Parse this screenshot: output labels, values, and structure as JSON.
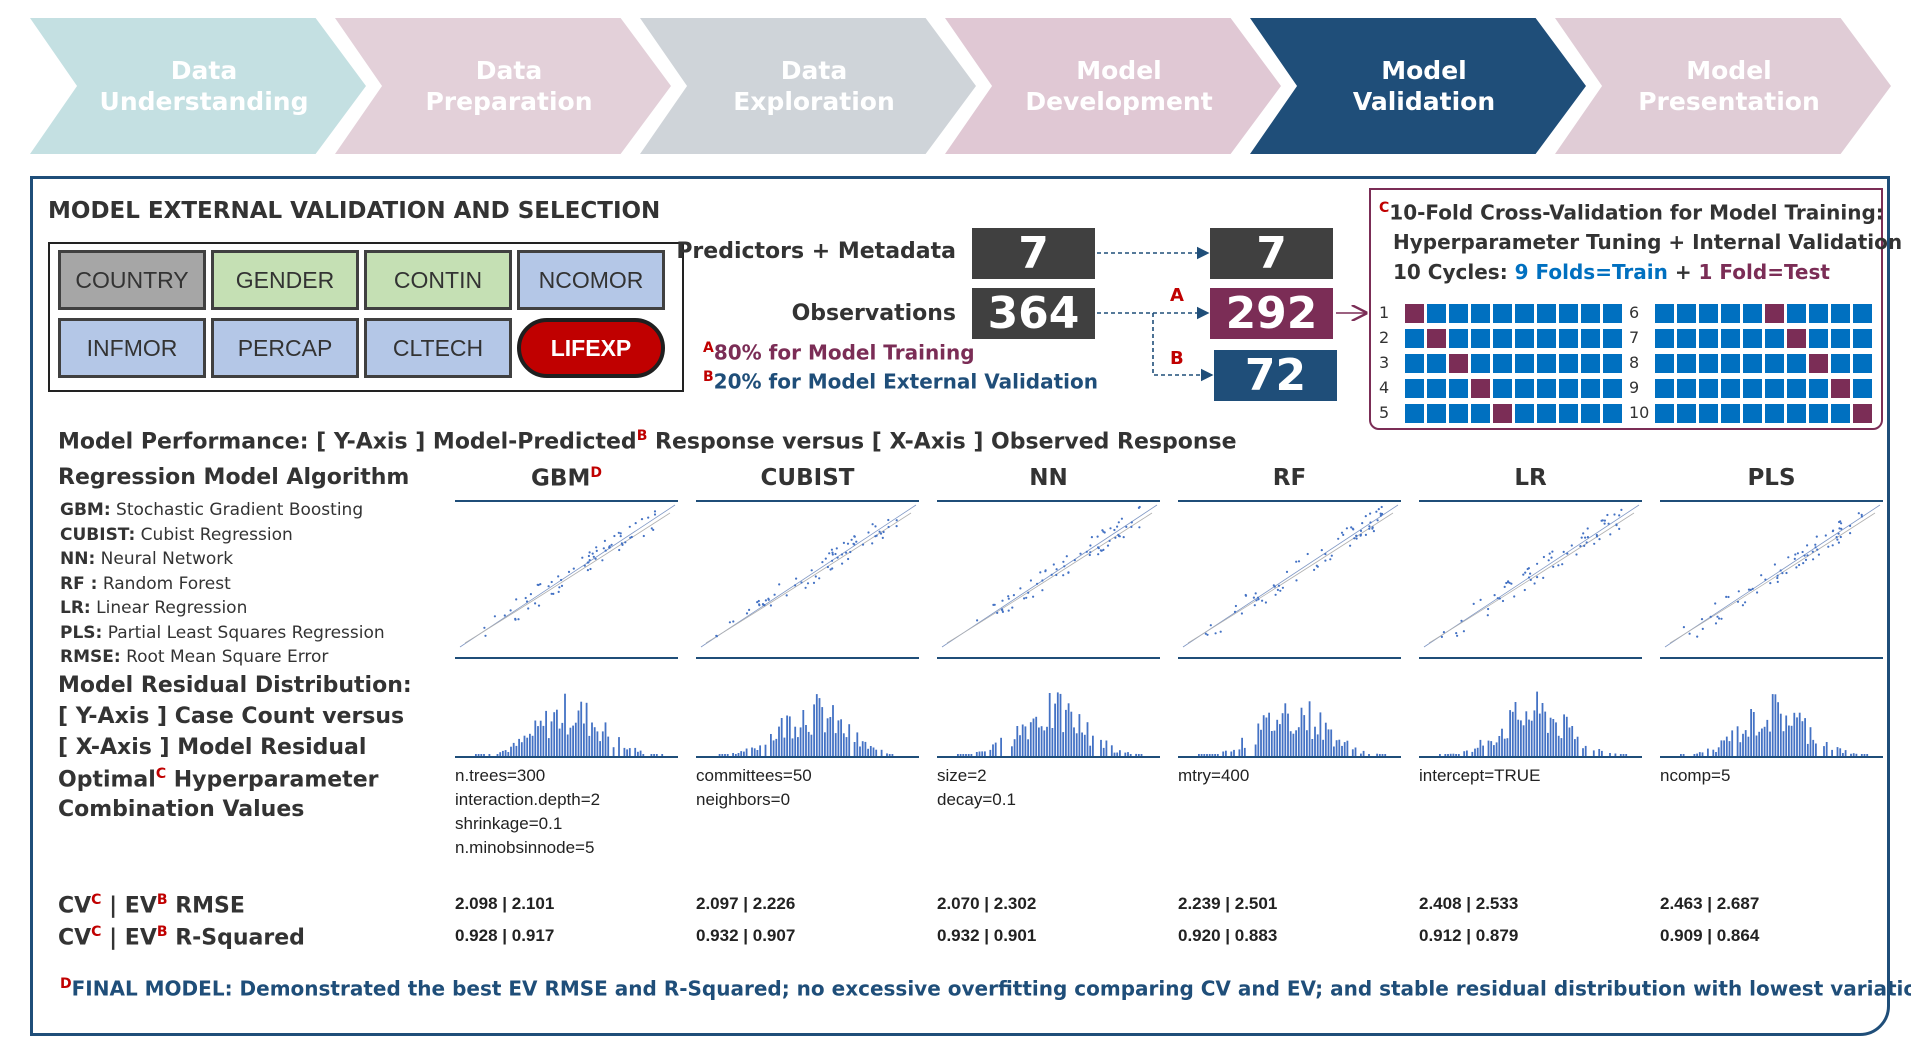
{
  "process": {
    "steps": [
      {
        "label": "Data\nUnderstanding",
        "color": "#c4e0e2"
      },
      {
        "label": "Data\nPreparation",
        "color": "#e3d0d9"
      },
      {
        "label": "Data\nExploration",
        "color": "#cfd4d9"
      },
      {
        "label": "Model\nDevelopment",
        "color": "#e0c8d4"
      },
      {
        "label": "Model\nValidation",
        "color": "#1f4e79"
      },
      {
        "label": "Model\nPresentation",
        "color": "#e0ccd6"
      }
    ]
  },
  "panel": {
    "title": "MODEL EXTERNAL VALIDATION AND SELECTION",
    "variables": [
      {
        "name": "COUNTRY",
        "color": "#a6a6a6"
      },
      {
        "name": "GENDER",
        "color": "#c5e0b4"
      },
      {
        "name": "CONTIN",
        "color": "#c5e0b4"
      },
      {
        "name": "NCOMOR",
        "color": "#b4c7e7"
      },
      {
        "name": "INFMOR",
        "color": "#b4c7e7"
      },
      {
        "name": "PERCAP",
        "color": "#b4c7e7"
      },
      {
        "name": "CLTECH",
        "color": "#b4c7e7"
      },
      {
        "name": "LIFEXP",
        "color": "#c00000"
      }
    ]
  },
  "split": {
    "predictors_label": "Predictors + Metadata",
    "observations_label": "Observations",
    "predictors_in": "7",
    "predictors_out": "7",
    "observations_in": "364",
    "train_count": "292",
    "test_count": "72",
    "marker_a": "A",
    "marker_b": "B",
    "note_a": "80% for Model Training",
    "note_b": "20% for Model External Validation",
    "colors": {
      "dark": "#404040",
      "train": "#7b2d56",
      "test": "#1f4e79"
    }
  },
  "cv": {
    "marker": "C",
    "line1": "10-Fold Cross-Validation for Model Training:",
    "line2": "Hyperparameter Tuning + Internal Validation",
    "line3_prefix": "10 Cycles: ",
    "line3_train": "9 Folds=Train",
    "line3_plus": " + ",
    "line3_test": "1 Fold=Test",
    "cycles": [
      "1",
      "2",
      "3",
      "4",
      "5",
      "6",
      "7",
      "8",
      "9",
      "10"
    ],
    "fold_colors": {
      "train": "#0070c0",
      "test": "#7b2d56"
    }
  },
  "performance": {
    "heading_prefix": "Model Performance: [ Y-Axis ] Model-Predicted",
    "heading_marker": "B",
    "heading_suffix": " Response versus [ X-Axis ] Observed Response",
    "algo_heading": "Regression Model Algorithm",
    "abbreviations": [
      {
        "key": "GBM:",
        "text": " Stochastic Gradient Boosting"
      },
      {
        "key": "CUBIST:",
        "text": " Cubist Regression"
      },
      {
        "key": "NN:",
        "text": " Neural Network"
      },
      {
        "key": "RF :",
        "text": " Random Forest"
      },
      {
        "key": "LR:",
        "text": " Linear Regression"
      },
      {
        "key": "PLS:",
        "text": " Partial Least Squares Regression"
      },
      {
        "key": "RMSE:",
        "text": " Root Mean Square Error"
      }
    ],
    "residual_heading_1": "Model Residual Distribution:",
    "residual_heading_2": "[ Y-Axis ] Case Count versus",
    "residual_heading_3": "[ X-Axis ] Model Residual",
    "optimal_heading_1": "Optimal",
    "optimal_marker": "C",
    "optimal_heading_1b": " Hyperparameter",
    "optimal_heading_2": "Combination Values",
    "rmse_label": "RMSE",
    "rsq_label": "R-Squared",
    "cv_label": "CV",
    "ev_label": " | EV",
    "marker_c": "C",
    "marker_b": "B",
    "marker_d": "D",
    "final_text": "FINAL MODEL: Demonstrated the best EV RMSE and R-Squared; no excessive overfitting comparing CV and EV; and stable residual distribution with lowest variation.",
    "models": [
      {
        "name": "GBM",
        "marker": "D",
        "hyper": "n.trees=300\ninteraction.depth=2\nshrinkage=0.1\nn.minobsinnode=5",
        "rmse": "2.098 | 2.101",
        "rsq": "0.928 | 0.917"
      },
      {
        "name": "CUBIST",
        "marker": "",
        "hyper": "committees=50\nneighbors=0",
        "rmse": "2.097 | 2.226",
        "rsq": "0.932 | 0.907"
      },
      {
        "name": "NN",
        "marker": "",
        "hyper": "size=2\ndecay=0.1",
        "rmse": "2.070 | 2.302",
        "rsq": "0.932 | 0.901"
      },
      {
        "name": "RF",
        "marker": "",
        "hyper": "mtry=400",
        "rmse": "2.239 | 2.501",
        "rsq": "0.920 | 0.883"
      },
      {
        "name": "LR",
        "marker": "",
        "hyper": "intercept=TRUE",
        "rmse": "2.408 | 2.533",
        "rsq": "0.912 | 0.879"
      },
      {
        "name": "PLS",
        "marker": "",
        "hyper": "ncomp=5",
        "rmse": "2.463 | 2.687",
        "rsq": "0.909 | 0.864"
      }
    ],
    "plot_color": "#4472c4",
    "axis_color": "#1f4e79"
  }
}
